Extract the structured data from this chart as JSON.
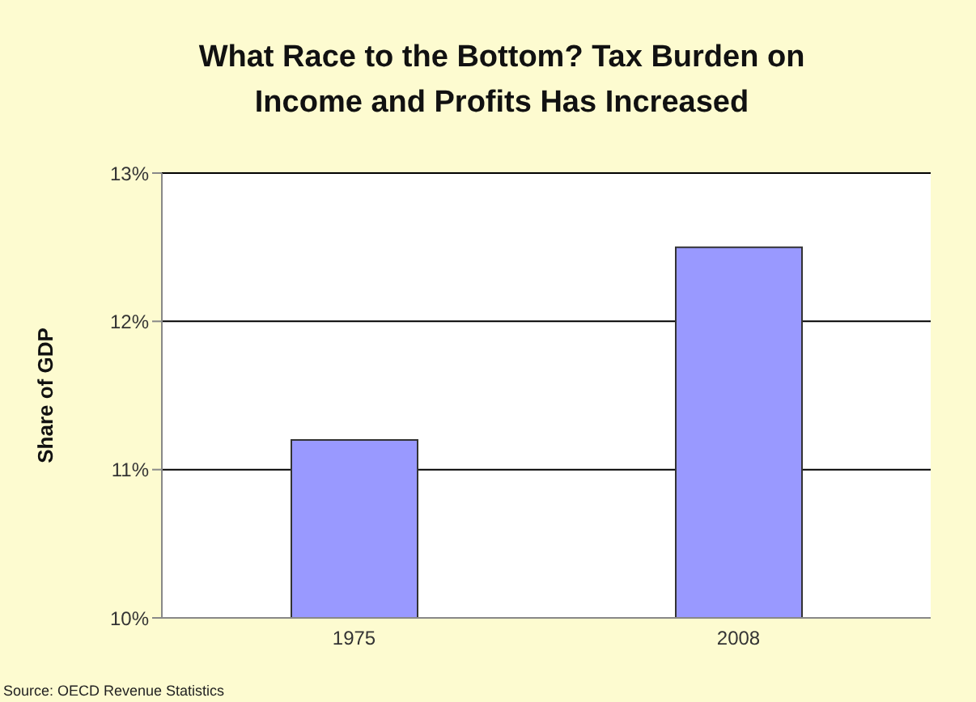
{
  "chart_data": {
    "type": "bar",
    "title": "What Race to the Bottom? Tax Burden on Income and Profits Has Increased",
    "ylabel": "Share of GDP",
    "categories": [
      "1975",
      "2008"
    ],
    "values": [
      11.2,
      12.5
    ],
    "color": "#9999ff",
    "ylim": [
      10,
      13
    ],
    "yticks": [
      {
        "value": 10,
        "label": "10%"
      },
      {
        "value": 11,
        "label": "11%"
      },
      {
        "value": 12,
        "label": "12%"
      },
      {
        "value": 13,
        "label": "13%"
      }
    ],
    "grid": "y",
    "annotations": [
      "Source: OECD Revenue Statistics"
    ]
  }
}
